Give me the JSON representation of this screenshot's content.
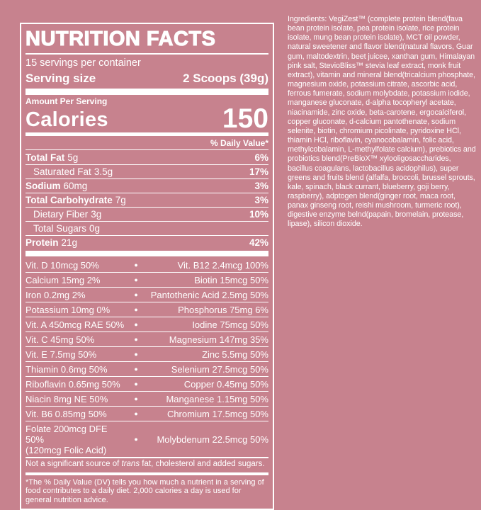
{
  "colors": {
    "background": "#c7828e",
    "foreground": "#ffffff"
  },
  "nutrition_panel": {
    "title": "NUTRITION FACTS",
    "servings_per_container": "15 servings per container",
    "serving_size": {
      "label": "Serving size",
      "value": "2 Scoops (39g)"
    },
    "amount_per_serving": "Amount Per Serving",
    "calories": {
      "label": "Calories",
      "value": "150"
    },
    "daily_value_header": "% Daily Value*",
    "bullet": "●",
    "nutrients": [
      {
        "name": "Total Fat",
        "amount": "5g",
        "dv": "6%",
        "indent": false
      },
      {
        "name": "Saturated Fat",
        "amount": "3.5g",
        "dv": "17%",
        "indent": true
      },
      {
        "name": "Sodium",
        "amount": "60mg",
        "dv": "3%",
        "indent": false
      },
      {
        "name": "Total Carbohydrate",
        "amount": "7g",
        "dv": "3%",
        "indent": false
      },
      {
        "name": "Dietary Fiber",
        "amount": "3g",
        "dv": "10%",
        "indent": true
      },
      {
        "name": "Total Sugars",
        "amount": "0g",
        "dv": "",
        "indent": true
      },
      {
        "name": "Protein",
        "amount": "21g",
        "dv": "42%",
        "indent": false
      }
    ],
    "micronutrients": [
      {
        "left": "Vit. D 10mcg 50%",
        "right": "Vit. B12 2.4mcg 100%"
      },
      {
        "left": "Calcium 15mg 2%",
        "right": "Biotin 15mcg 50%"
      },
      {
        "left": "Iron 0.2mg 2%",
        "right": "Pantothenic Acid 2.5mg 50%"
      },
      {
        "left": "Potassium 10mg 0%",
        "right": "Phosphorus 75mg 6%"
      },
      {
        "left": "Vit. A 450mcg RAE 50%",
        "right": "Iodine 75mcg 50%"
      },
      {
        "left": "Vit. C 45mg 50%",
        "right": "Magnesium 147mg 35%"
      },
      {
        "left": "Vit. E 7.5mg 50%",
        "right": "Zinc 5.5mg 50%"
      },
      {
        "left": "Thiamin 0.6mg 50%",
        "right": "Selenium 27.5mcg 50%"
      },
      {
        "left": "Riboflavin 0.65mg 50%",
        "right": "Copper 0.45mg 50%"
      },
      {
        "left": "Niacin 8mg NE 50%",
        "right": "Manganese 1.15mg 50%"
      },
      {
        "left": "Vit. B6 0.85mg 50%",
        "right": "Chromium 17.5mcg 50%"
      },
      {
        "left": "Folate 200mcg DFE 50%\n(120mcg Folic Acid)",
        "right": "Molybdenum 22.5mcg 50%"
      }
    ],
    "not_significant": {
      "pre": "Not a significant source of ",
      "italic": "trans",
      "post": " fat, cholesterol and added sugars."
    },
    "footnote": "*The % Daily Value (DV) tells you how much a nutrient in a serving of food contributes to a daily diet. 2,000 calories a day is used for general nutrition advice."
  },
  "ingredients": {
    "text": "Ingredients: VegiZest™ (complete protein blend(fava bean protein isolate, pea protein isolate, rice protein isolate, mung bean protein isolate), MCT oil powder, natural sweetener and flavor blend(natural flavors, Guar gum, maltodextrin, beet juicee, xanthan gum, Himalayan pink salt, StevioBliss™ stevia leaf extract, monk fruit extract), vitamin and mineral blend(tricalcium phosphate, magnesium oxide, potassium citrate, ascorbic acid, ferrous fumerate, sodium molybdate, potassium iodide, manganese gluconate, d-alpha tocopheryl acetate, niacinamide, zinc oxide, beta-carotene, ergocalciferol, copper gluconate, d-calcium pantothenate, sodium selenite, biotin, chromium picolinate, pyridoxine HCl, thiamin HCl, riboflavin, cyanocobalamin, folic acid, methylcobalamin, L-methylfolate calcium), prebiotics and probiotics blend(PreBioX™ xylooligosaccharides, bacillus coagulans, lactobacillus acidophilus), super greens and fruits blend (alfalfa, broccoli, brussel sprouts, kale, spinach, black currant, blueberry, goji berry, raspberry), adptogen blend(ginger root, maca root, panax ginseng root, reishi mushroom, turmeric root), digestive enzyme belnd(papain, bromelain, protease, lipase), silicon dioxide."
  }
}
